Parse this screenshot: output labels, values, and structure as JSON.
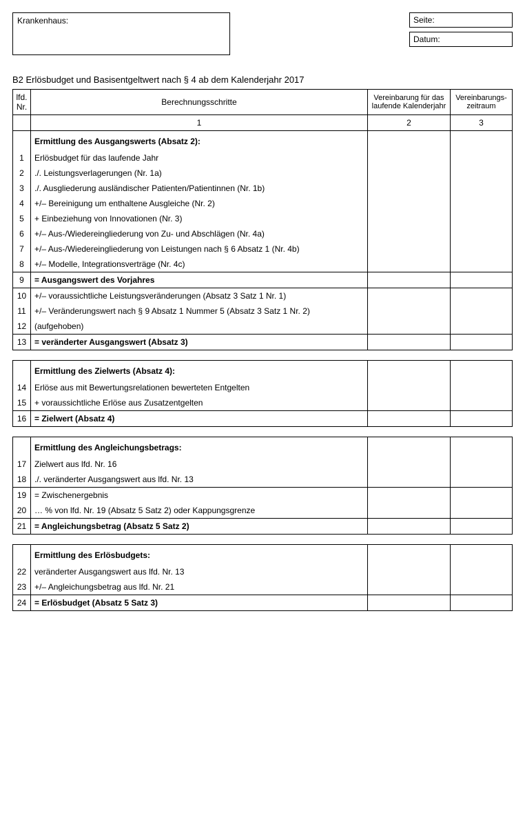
{
  "header": {
    "hospital_label": "Krankenhaus:",
    "page_label": "Seite:",
    "date_label": "Datum:"
  },
  "title": "B2 Erlösbudget und Basisentgeltwert nach § 4 ab dem Kalenderjahr 2017",
  "thead": {
    "nr": "lfd. Nr.",
    "steps": "Berechnungsschritte",
    "col2": "Vereinbarung für das laufende Kalenderjahr",
    "col3": "Vereinbarungs-zeitraum",
    "n1": "1",
    "n2": "2",
    "n3": "3"
  },
  "s1": {
    "heading": "Ermittlung des Ausgangswerts (Absatz 2):",
    "r1": {
      "n": "1",
      "t": "Erlösbudget für das laufende Jahr"
    },
    "r2": {
      "n": "2",
      "t": "./. Leistungsverlagerungen (Nr. 1a)"
    },
    "r3": {
      "n": "3",
      "t": "./. Ausgliederung ausländischer Patienten/Patientinnen (Nr. 1b)"
    },
    "r4": {
      "n": "4",
      "t": "+/– Bereinigung um enthaltene Ausgleiche (Nr. 2)"
    },
    "r5": {
      "n": "5",
      "t": "+ Einbeziehung von Innovationen (Nr. 3)"
    },
    "r6": {
      "n": "6",
      "t": "+/– Aus-/Wiedereingliederung von Zu- und Abschlägen (Nr. 4a)"
    },
    "r7": {
      "n": "7",
      "t": "+/– Aus-/Wiedereingliederung von Leistungen nach § 6 Absatz 1 (Nr. 4b)"
    },
    "r8": {
      "n": "8",
      "t": "+/– Modelle, Integrationsverträge (Nr. 4c)"
    },
    "r9": {
      "n": "9",
      "t": "= Ausgangswert des Vorjahres"
    },
    "r10": {
      "n": "10",
      "t": "+/– voraussichtliche Leistungsveränderungen (Absatz 3 Satz 1 Nr. 1)"
    },
    "r11": {
      "n": "11",
      "t": "+/– Veränderungswert nach § 9 Absatz 1 Nummer 5 (Absatz 3 Satz 1 Nr. 2)"
    },
    "r12": {
      "n": "12",
      "t": "(aufgehoben)"
    },
    "r13": {
      "n": "13",
      "t": "= veränderter Ausgangswert (Absatz 3)"
    }
  },
  "s2": {
    "heading": "Ermittlung des Zielwerts (Absatz 4):",
    "r14": {
      "n": "14",
      "t": "Erlöse aus mit Bewertungsrelationen bewerteten Entgelten"
    },
    "r15": {
      "n": "15",
      "t": "+ voraussichtliche Erlöse aus Zusatzentgelten"
    },
    "r16": {
      "n": "16",
      "t": "= Zielwert (Absatz 4)"
    }
  },
  "s3": {
    "heading": "Ermittlung des Angleichungsbetrags:",
    "r17": {
      "n": "17",
      "t": "Zielwert aus lfd. Nr. 16"
    },
    "r18": {
      "n": "18",
      "t": "./. veränderter Ausgangswert aus lfd. Nr. 13"
    },
    "r19": {
      "n": "19",
      "t": "= Zwischenergebnis"
    },
    "r20": {
      "n": "20",
      "t": "… % von lfd. Nr. 19 (Absatz 5 Satz 2) oder Kappungsgrenze"
    },
    "r21": {
      "n": "21",
      "t": "= Angleichungsbetrag (Absatz 5 Satz 2)"
    }
  },
  "s4": {
    "heading": "Ermittlung des Erlösbudgets:",
    "r22": {
      "n": "22",
      "t": "veränderter Ausgangswert aus lfd. Nr. 13"
    },
    "r23": {
      "n": "23",
      "t": "+/– Angleichungsbetrag aus lfd. Nr. 21"
    },
    "r24": {
      "n": "24",
      "t": "= Erlösbudget (Absatz 5 Satz 3)"
    }
  }
}
